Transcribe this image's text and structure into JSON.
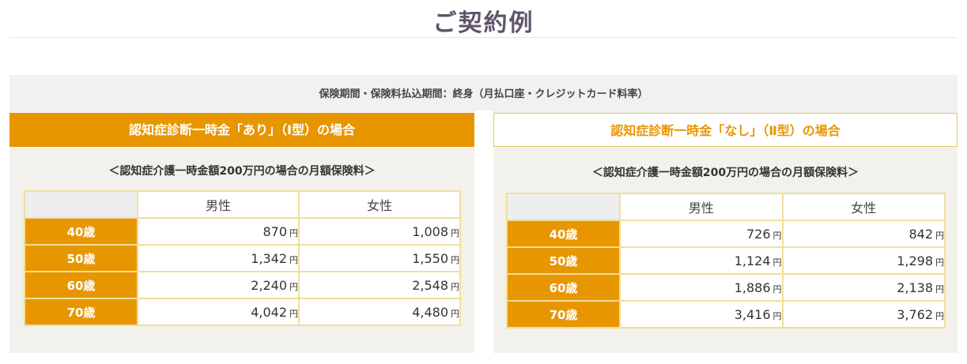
{
  "page_title": "ご契約例",
  "condition": "保険期間・保険料払込期間：終身（月払口座・クレジットカード料率）",
  "yen_unit": "円",
  "plans": [
    {
      "header": "認知症診断一時金「あり」（Ⅰ型）の場合",
      "subtitle": "＜認知症介護一時金額200万円の場合の月額保険料＞",
      "columns": [
        "男性",
        "女性"
      ],
      "rows": [
        {
          "age": "40歳",
          "male": "870",
          "female": "1,008"
        },
        {
          "age": "50歳",
          "male": "1,342",
          "female": "1,550"
        },
        {
          "age": "60歳",
          "male": "2,240",
          "female": "2,548"
        },
        {
          "age": "70歳",
          "male": "4,042",
          "female": "4,480"
        }
      ]
    },
    {
      "header": "認知症診断一時金「なし」（Ⅱ型）の場合",
      "subtitle": "＜認知症介護一時金額200万円の場合の月額保険料＞",
      "columns": [
        "男性",
        "女性"
      ],
      "rows": [
        {
          "age": "40歳",
          "male": "726",
          "female": "842"
        },
        {
          "age": "50歳",
          "male": "1,124",
          "female": "1,298"
        },
        {
          "age": "60歳",
          "male": "1,886",
          "female": "2,138"
        },
        {
          "age": "70歳",
          "male": "3,416",
          "female": "3,762"
        }
      ]
    }
  ],
  "colors": {
    "accent_orange": "#e89600",
    "panel_bg": "#f2f1ec",
    "table_border": "#f0de9a",
    "title_color": "#5f5568"
  }
}
